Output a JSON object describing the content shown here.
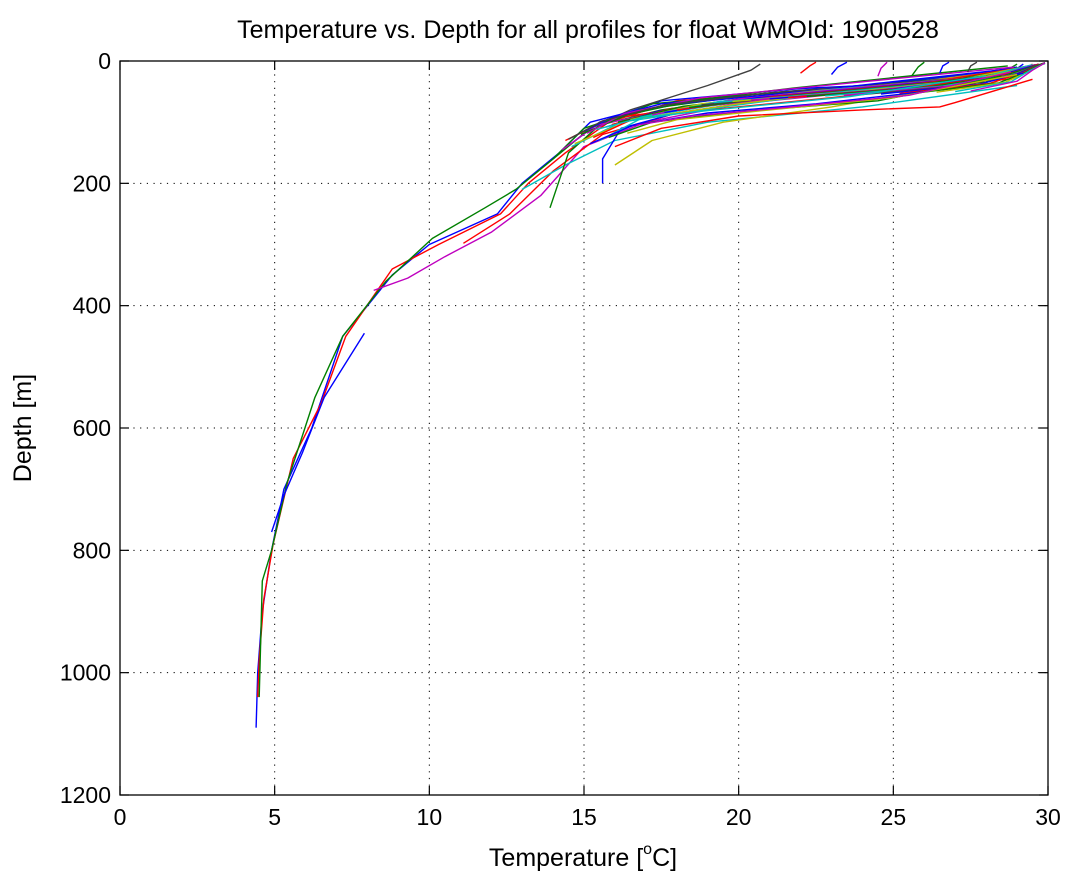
{
  "chart_data": {
    "type": "line",
    "title": "Temperature vs. Depth for all profiles for float WMOId: 1900528",
    "xlabel": "Temperature [°C]",
    "xlabel_parts": {
      "before": "Temperature [",
      "sup": "o",
      "after": "C]"
    },
    "ylabel": "Depth [m]",
    "xlim": [
      0,
      30
    ],
    "ylim": [
      0,
      1200
    ],
    "y_reversed": true,
    "grid": true,
    "x_ticks": [
      0,
      5,
      10,
      15,
      20,
      25,
      30
    ],
    "y_ticks": [
      0,
      200,
      400,
      600,
      800,
      1000,
      1200
    ],
    "x_tick_labels": [
      "0",
      "5",
      "10",
      "15",
      "20",
      "25",
      "30"
    ],
    "y_tick_labels": [
      "0",
      "200",
      "400",
      "600",
      "800",
      "1000",
      "1200"
    ],
    "series_colors": [
      "#0000ff",
      "#008000",
      "#ff0000",
      "#00bfbf",
      "#bf00bf",
      "#bfbf00",
      "#404040"
    ],
    "series": [
      {
        "color": "#0000ff",
        "x": [
          29.2,
          28.5,
          22.0,
          17.5,
          15.5,
          14.2,
          13.0,
          12.2,
          10.0,
          8.8,
          7.2,
          6.2,
          5.3,
          4.9,
          4.6,
          4.45,
          4.4
        ],
        "y": [
          5,
          30,
          45,
          65,
          100,
          150,
          200,
          250,
          300,
          350,
          450,
          600,
          700,
          800,
          900,
          1000,
          1090
        ]
      },
      {
        "color": "#ff0000",
        "x": [
          29.5,
          28.8,
          23.0,
          18.0,
          15.8,
          14.4,
          13.2,
          12.3,
          10.3,
          8.8,
          7.3,
          6.5,
          5.6,
          4.95,
          4.65,
          4.5,
          4.45
        ],
        "y": [
          5,
          30,
          45,
          65,
          100,
          150,
          200,
          250,
          300,
          340,
          450,
          560,
          650,
          790,
          880,
          980,
          1040
        ]
      },
      {
        "color": "#008000",
        "x": [
          29.0,
          28.0,
          21.5,
          17.2,
          15.2,
          14.0,
          12.8,
          11.8,
          10.1,
          8.6,
          7.2,
          6.3,
          5.4,
          4.9,
          4.6,
          4.5
        ],
        "y": [
          5,
          35,
          50,
          70,
          110,
          160,
          210,
          240,
          290,
          360,
          450,
          550,
          690,
          800,
          850,
          1040
        ]
      },
      {
        "color": "#0000ff",
        "x": [
          7.9,
          6.6,
          5.9,
          5.3,
          4.9
        ],
        "y": [
          445,
          550,
          640,
          710,
          770
        ]
      },
      {
        "color": "#bf00bf",
        "x": [
          8.2,
          9.3,
          10.5,
          12.0,
          13.6,
          15.0,
          17.0,
          20.0,
          25.0,
          28.5
        ],
        "y": [
          375,
          355,
          320,
          280,
          220,
          140,
          100,
          70,
          45,
          20
        ]
      },
      {
        "color": "#ff0000",
        "x": [
          11.1,
          12.6,
          14.0,
          15.6,
          18.0,
          23.0,
          28.2
        ],
        "y": [
          298,
          250,
          180,
          120,
          85,
          60,
          30
        ]
      },
      {
        "color": "#00bfbf",
        "x": [
          13.0,
          14.4,
          16.0,
          19.0,
          24.0,
          29.0
        ],
        "y": [
          210,
          170,
          130,
          100,
          75,
          40
        ]
      },
      {
        "color": "#008000",
        "x": [
          13.9,
          14.5,
          15.5,
          17.5,
          21.0,
          26.0,
          29.6
        ],
        "y": [
          240,
          150,
          105,
          80,
          55,
          30,
          10
        ]
      },
      {
        "color": "#0000ff",
        "x": [
          15.6,
          15.6,
          16.2,
          18.0,
          22.0,
          27.0
        ],
        "y": [
          200,
          160,
          110,
          85,
          55,
          25
        ]
      },
      {
        "color": "#bfbf00",
        "x": [
          16.0,
          17.2,
          19.5,
          23.0,
          27.5
        ],
        "y": [
          170,
          130,
          100,
          75,
          35
        ]
      },
      {
        "color": "#404040",
        "x": [
          14.8,
          16.5,
          19.0,
          20.4,
          20.7
        ],
        "y": [
          120,
          80,
          40,
          15,
          5
        ]
      },
      {
        "color": "#0000ff",
        "x": [
          14.2,
          15.2,
          17.5,
          21.5,
          26.5,
          29.0
        ],
        "y": [
          150,
          100,
          70,
          50,
          30,
          10
        ]
      },
      {
        "color": "#ff0000",
        "x": [
          14.4,
          15.8,
          18.5,
          22.5,
          27.0,
          29.3
        ],
        "y": [
          130,
          95,
          75,
          55,
          30,
          12
        ]
      },
      {
        "color": "#008000",
        "x": [
          14.0,
          15.0,
          16.8,
          20.5,
          25.5,
          28.9
        ],
        "y": [
          160,
          110,
          80,
          55,
          35,
          15
        ]
      },
      {
        "color": "#00bfbf",
        "x": [
          14.6,
          16.2,
          19.5,
          24.0,
          28.8
        ],
        "y": [
          140,
          100,
          75,
          45,
          15
        ]
      },
      {
        "color": "#bf00bf",
        "x": [
          14.3,
          15.4,
          17.8,
          22.5,
          28.0
        ],
        "y": [
          145,
          105,
          80,
          55,
          20
        ]
      },
      {
        "color": "#bfbf00",
        "x": [
          14.7,
          16.6,
          20.0,
          25.0,
          29.5
        ],
        "y": [
          135,
          95,
          70,
          40,
          10
        ]
      },
      {
        "color": "#0000ff",
        "x": [
          15.0,
          16.0,
          18.0,
          22.0,
          27.5,
          29.4
        ],
        "y": [
          115,
          90,
          70,
          50,
          30,
          15
        ]
      },
      {
        "color": "#ff0000",
        "x": [
          15.3,
          16.7,
          19.2,
          23.8,
          28.4,
          29.1
        ],
        "y": [
          125,
          92,
          68,
          48,
          25,
          10
        ]
      },
      {
        "color": "#008000",
        "x": [
          14.9,
          16.4,
          18.6,
          21.8,
          26.0,
          28.7
        ],
        "y": [
          120,
          88,
          64,
          44,
          22,
          8
        ]
      },
      {
        "color": "#00bfbf",
        "x": [
          15.5,
          17.0,
          20.5,
          25.5,
          29.2
        ],
        "y": [
          130,
          90,
          62,
          40,
          12
        ]
      },
      {
        "color": "#bf00bf",
        "x": [
          15.1,
          16.3,
          18.8,
          23.2,
          28.9
        ],
        "y": [
          118,
          86,
          60,
          38,
          10
        ]
      },
      {
        "color": "#404040",
        "x": [
          14.5,
          15.6,
          17.6,
          21.0,
          27.2,
          29.6
        ],
        "y": [
          128,
          98,
          72,
          52,
          28,
          6
        ]
      },
      {
        "color": "#0000ff",
        "x": [
          15.7,
          17.4,
          20.8,
          24.6,
          28.6
        ],
        "y": [
          108,
          82,
          58,
          36,
          14
        ]
      },
      {
        "color": "#ff0000",
        "x": [
          15.9,
          17.8,
          21.4,
          26.2,
          29.0
        ],
        "y": [
          104,
          78,
          55,
          34,
          12
        ]
      },
      {
        "color": "#008000",
        "x": [
          16.1,
          18.2,
          22.0,
          26.8,
          29.3
        ],
        "y": [
          100,
          74,
          52,
          32,
          10
        ]
      },
      {
        "color": "#bfbf00",
        "x": [
          16.5,
          18.8,
          22.6,
          27.4,
          29.4
        ],
        "y": [
          96,
          70,
          48,
          28,
          8
        ]
      },
      {
        "color": "#00bfbf",
        "x": [
          16.8,
          19.4,
          23.4,
          27.9,
          29.5
        ],
        "y": [
          92,
          66,
          45,
          26,
          6
        ]
      },
      {
        "color": "#bf00bf",
        "x": [
          17.2,
          20.0,
          24.2,
          28.3,
          29.6
        ],
        "y": [
          88,
          62,
          42,
          24,
          6
        ]
      },
      {
        "color": "#0000ff",
        "x": [
          17.6,
          20.6,
          25.0,
          28.6,
          29.7
        ],
        "y": [
          84,
          60,
          40,
          22,
          5
        ]
      },
      {
        "color": "#ff0000",
        "x": [
          18.0,
          21.2,
          25.6,
          28.8,
          29.7
        ],
        "y": [
          80,
          58,
          38,
          20,
          5
        ]
      },
      {
        "color": "#008000",
        "x": [
          18.4,
          21.8,
          26.2,
          29.0,
          29.8
        ],
        "y": [
          76,
          56,
          36,
          18,
          5
        ]
      },
      {
        "color": "#404040",
        "x": [
          18.8,
          22.4,
          26.8,
          29.1,
          29.8
        ],
        "y": [
          72,
          54,
          34,
          16,
          5
        ]
      },
      {
        "color": "#00bfbf",
        "x": [
          19.2,
          23.0,
          27.2,
          29.2,
          29.8
        ],
        "y": [
          68,
          52,
          32,
          14,
          5
        ]
      },
      {
        "color": "#bfbf00",
        "x": [
          19.8,
          23.8,
          27.6,
          29.3,
          29.9
        ],
        "y": [
          66,
          50,
          30,
          12,
          4
        ]
      },
      {
        "color": "#bf00bf",
        "x": [
          20.4,
          24.4,
          28.0,
          29.4,
          29.9
        ],
        "y": [
          64,
          48,
          28,
          12,
          4
        ]
      },
      {
        "color": "#0000ff",
        "x": [
          21.0,
          25.0,
          28.2,
          29.4,
          29.9
        ],
        "y": [
          62,
          46,
          26,
          10,
          4
        ]
      },
      {
        "color": "#ff0000",
        "x": [
          21.6,
          25.6,
          28.4,
          29.5,
          29.9
        ],
        "y": [
          60,
          44,
          25,
          10,
          4
        ]
      },
      {
        "color": "#008000",
        "x": [
          22.2,
          26.2,
          28.6,
          29.5,
          29.9
        ],
        "y": [
          58,
          42,
          24,
          9,
          4
        ]
      },
      {
        "color": "#00bfbf",
        "x": [
          22.8,
          26.6,
          28.8,
          29.6,
          29.9
        ],
        "y": [
          57,
          41,
          23,
          9,
          4
        ]
      },
      {
        "color": "#bf00bf",
        "x": [
          23.4,
          27.0,
          28.9,
          29.6,
          29.9
        ],
        "y": [
          56,
          40,
          22,
          8,
          3
        ]
      },
      {
        "color": "#404040",
        "x": [
          24.0,
          27.4,
          29.0,
          29.6,
          29.9
        ],
        "y": [
          55,
          39,
          21,
          8,
          3
        ]
      },
      {
        "color": "#0000ff",
        "x": [
          24.6,
          27.8,
          29.1,
          29.7,
          29.9
        ],
        "y": [
          54,
          38,
          20,
          8,
          3
        ]
      },
      {
        "color": "#ff0000",
        "x": [
          25.2,
          28.1,
          29.2,
          29.7,
          29.9
        ],
        "y": [
          53,
          37,
          19,
          7,
          3
        ]
      },
      {
        "color": "#008000",
        "x": [
          25.8,
          28.4,
          29.3,
          29.7,
          29.9
        ],
        "y": [
          52,
          36,
          18,
          7,
          3
        ]
      },
      {
        "color": "#bfbf00",
        "x": [
          26.4,
          28.6,
          29.4,
          29.8,
          29.9
        ],
        "y": [
          51,
          35,
          17,
          6,
          3
        ]
      },
      {
        "color": "#00bfbf",
        "x": [
          27.0,
          28.8,
          29.4,
          29.8,
          29.9
        ],
        "y": [
          50,
          34,
          16,
          6,
          3
        ]
      },
      {
        "color": "#bf00bf",
        "x": [
          27.5,
          29.0,
          29.5,
          29.8,
          29.9
        ],
        "y": [
          49,
          33,
          15,
          6,
          3
        ]
      },
      {
        "color": "#ff0000",
        "x": [
          16.0,
          17.5,
          20.0,
          24.0,
          26.5,
          27.0,
          29.5
        ],
        "y": [
          140,
          110,
          90,
          80,
          75,
          68,
          30
        ]
      },
      {
        "color": "#0000ff",
        "x": [
          15.2,
          16.6,
          19.0,
          22.5,
          26.0,
          29.2
        ],
        "y": [
          135,
          105,
          85,
          70,
          50,
          20
        ]
      },
      {
        "color": "#008000",
        "x": [
          15.8,
          17.2,
          20.2,
          24.5,
          28.5
        ],
        "y": [
          125,
          100,
          82,
          65,
          25
        ]
      },
      {
        "color": "#bfbf00",
        "x": [
          16.4,
          18.0,
          21.0,
          25.0,
          29.0
        ],
        "y": [
          118,
          96,
          80,
          60,
          22
        ]
      },
      {
        "color": "#00bfbf",
        "x": [
          15.4,
          16.9,
          19.6,
          23.6,
          28.0
        ],
        "y": [
          112,
          92,
          78,
          58,
          24
        ]
      },
      {
        "color": "#bf00bf",
        "x": [
          16.7,
          18.5,
          21.5,
          25.5,
          28.8
        ],
        "y": [
          105,
          90,
          76,
          56,
          18
        ]
      },
      {
        "color": "#ff0000",
        "x": [
          22.0,
          22.3,
          22.5
        ],
        "y": [
          20,
          8,
          2
        ]
      },
      {
        "color": "#0000ff",
        "x": [
          23.0,
          23.2,
          23.5
        ],
        "y": [
          22,
          10,
          2
        ]
      },
      {
        "color": "#bf00bf",
        "x": [
          24.5,
          24.6,
          24.8
        ],
        "y": [
          25,
          12,
          2
        ]
      },
      {
        "color": "#008000",
        "x": [
          25.6,
          25.8,
          26.0
        ],
        "y": [
          24,
          10,
          2
        ]
      },
      {
        "color": "#0000ff",
        "x": [
          26.5,
          26.6,
          26.8
        ],
        "y": [
          20,
          8,
          2
        ]
      },
      {
        "color": "#404040",
        "x": [
          27.4,
          27.5,
          27.7
        ],
        "y": [
          18,
          8,
          2
        ]
      }
    ]
  }
}
